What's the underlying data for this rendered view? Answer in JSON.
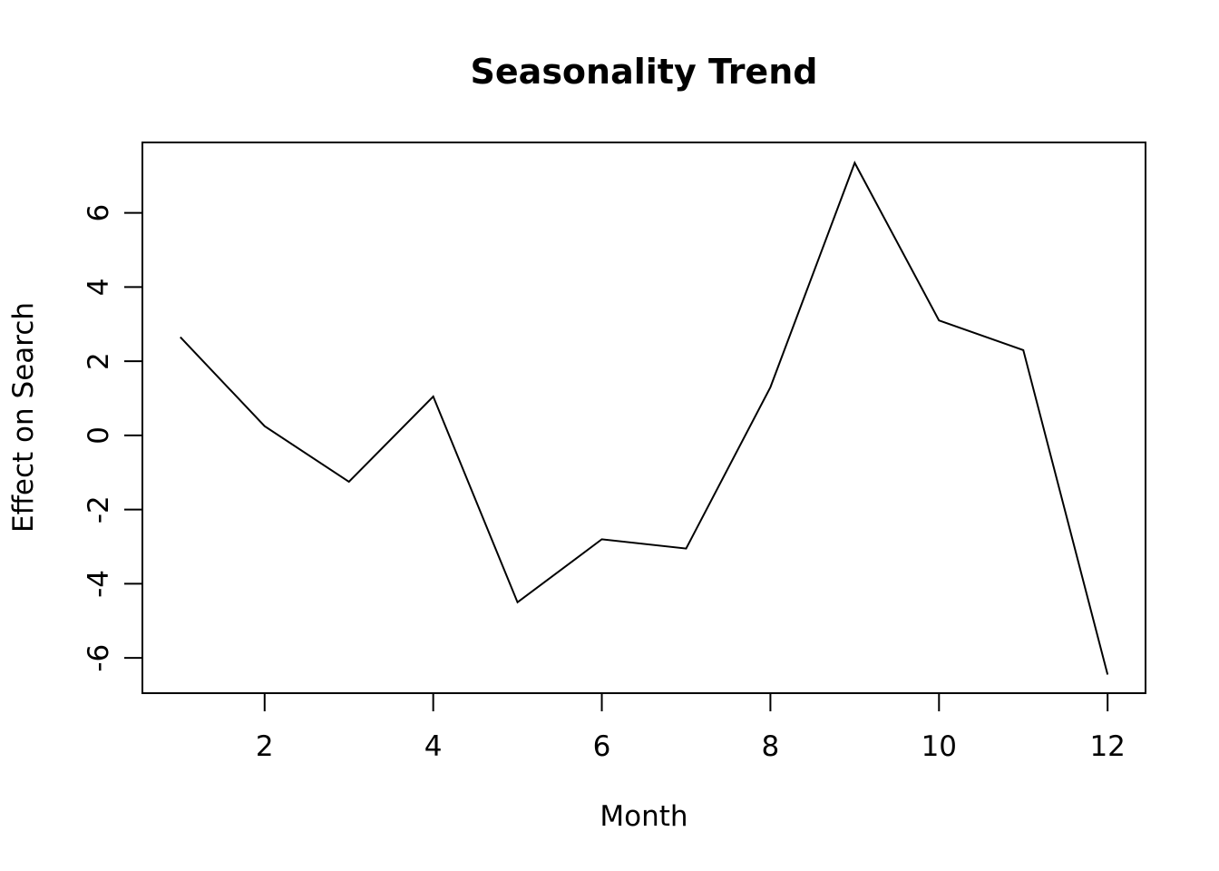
{
  "chart_data": {
    "type": "line",
    "title": "Seasonality Trend",
    "xlabel": "Month",
    "ylabel": "Effect on Search",
    "x": [
      1,
      2,
      3,
      4,
      5,
      6,
      7,
      8,
      9,
      10,
      11,
      12
    ],
    "series": [
      {
        "values": [
          2.65,
          0.25,
          -1.25,
          1.05,
          -4.5,
          -2.8,
          -3.05,
          1.3,
          7.35,
          3.1,
          2.3,
          -6.45
        ],
        "color": "#000000"
      }
    ],
    "xlim": [
      0.55,
      12.45
    ],
    "ylim": [
      -6.95,
      7.9
    ],
    "xticks": [
      2,
      4,
      6,
      8,
      10,
      12
    ],
    "yticks": [
      -6,
      -4,
      -2,
      0,
      2,
      4,
      6
    ],
    "xtick_labels": [
      "2",
      "4",
      "6",
      "8",
      "10",
      "12"
    ],
    "ytick_labels": [
      "-6",
      "-4",
      "-2",
      "0",
      "2",
      "4",
      "6"
    ],
    "grid": false,
    "legend": "none"
  }
}
